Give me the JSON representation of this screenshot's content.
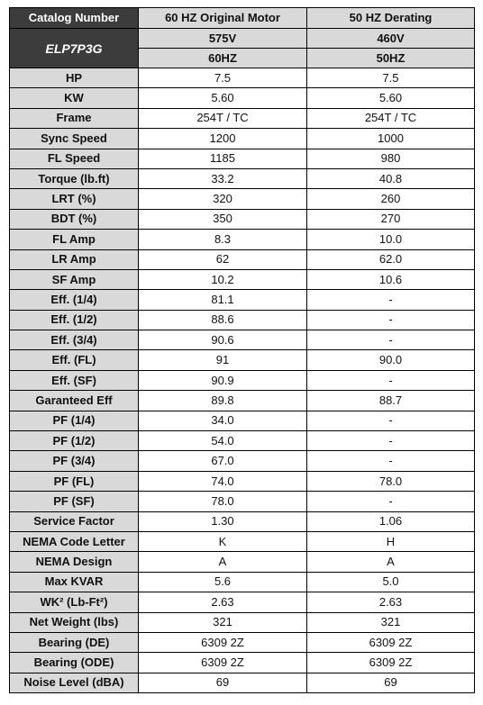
{
  "table": {
    "header": [
      "Catalog Number",
      "60 HZ Original Motor",
      "50 HZ Derating"
    ],
    "model": "ELP7P3G",
    "voltage": [
      "575V",
      "460V"
    ],
    "frequency": [
      "60HZ",
      "50HZ"
    ],
    "rows": [
      [
        "HP",
        "7.5",
        "7.5"
      ],
      [
        "KW",
        "5.60",
        "5.60"
      ],
      [
        "Frame",
        "254T / TC",
        "254T / TC"
      ],
      [
        "Sync Speed",
        "1200",
        "1000"
      ],
      [
        "FL Speed",
        "1185",
        "980"
      ],
      [
        "Torque (lb.ft)",
        "33.2",
        "40.8"
      ],
      [
        "LRT (%)",
        "320",
        "260"
      ],
      [
        "BDT (%)",
        "350",
        "270"
      ],
      [
        "FL Amp",
        "8.3",
        "10.0"
      ],
      [
        "LR Amp",
        "62",
        "62.0"
      ],
      [
        "SF Amp",
        "10.2",
        "10.6"
      ],
      [
        "Eff. (1/4)",
        "81.1",
        "-"
      ],
      [
        "Eff. (1/2)",
        "88.6",
        "-"
      ],
      [
        "Eff. (3/4)",
        "90.6",
        "-"
      ],
      [
        "Eff. (FL)",
        "91",
        "90.0"
      ],
      [
        "Eff. (SF)",
        "90.9",
        "-"
      ],
      [
        "Garanteed Eff",
        "89.8",
        "88.7"
      ],
      [
        "PF (1/4)",
        "34.0",
        "-"
      ],
      [
        "PF (1/2)",
        "54.0",
        "-"
      ],
      [
        "PF (3/4)",
        "67.0",
        "-"
      ],
      [
        "PF (FL)",
        "74.0",
        "78.0"
      ],
      [
        "PF (SF)",
        "78.0",
        "-"
      ],
      [
        "Service Factor",
        "1.30",
        "1.06"
      ],
      [
        "NEMA Code Letter",
        "K",
        "H"
      ],
      [
        "NEMA Design",
        "A",
        "A"
      ],
      [
        "Max KVAR",
        "5.6",
        "5.0"
      ],
      [
        "WK² (Lb-Ft²)",
        "2.63",
        "2.63"
      ],
      [
        "Net Weight (lbs)",
        "321",
        "321"
      ],
      [
        "Bearing (DE)",
        "6309 2Z",
        "6309 2Z"
      ],
      [
        "Bearing (ODE)",
        "6309 2Z",
        "6309 2Z"
      ],
      [
        "Noise Level (dBA)",
        "69",
        "69"
      ]
    ]
  }
}
